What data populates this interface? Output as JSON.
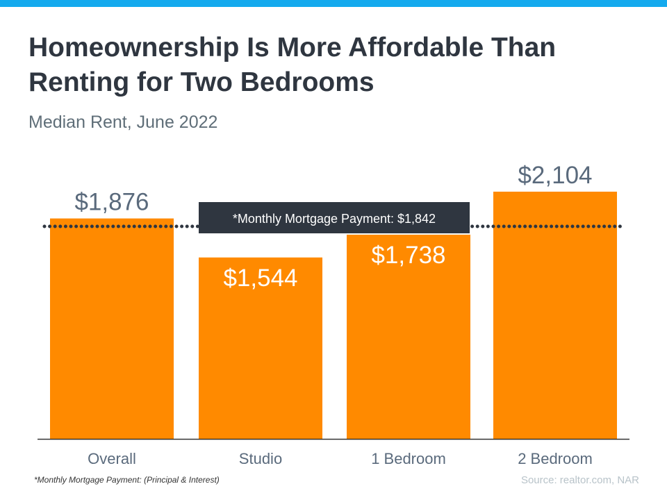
{
  "colors": {
    "top_bar": "#14aaee",
    "bar": "#ff8a00",
    "callout_bg": "#2f3640",
    "label_outside": "#5a6a7c",
    "label_inside": "#ffffff",
    "axis": "#333333"
  },
  "header": {
    "title_line1": "Homeownership Is More Affordable Than",
    "title_line2": "Renting for Two Bedrooms",
    "subtitle": "Median Rent, June 2022"
  },
  "chart_data": {
    "type": "bar",
    "title": "Homeownership Is More Affordable Than Renting for Two Bedrooms",
    "subtitle": "Median Rent, June 2022",
    "categories": [
      "Overall",
      "Studio",
      "1 Bedroom",
      "2 Bedroom"
    ],
    "values": [
      1876,
      1544,
      1738,
      2104
    ],
    "value_labels": [
      "$1,876",
      "$1,544",
      "$1,738",
      "$2,104"
    ],
    "reference_line": {
      "value": 1842,
      "label": "*Monthly Mortgage Payment: $1,842",
      "style": "dotted"
    },
    "grid": false,
    "xlabel": "",
    "ylabel": ""
  },
  "footer": {
    "footnote": "*Monthly Mortgage Payment: (Principal & Interest)",
    "source": "Source: realtor.com,  NAR"
  }
}
